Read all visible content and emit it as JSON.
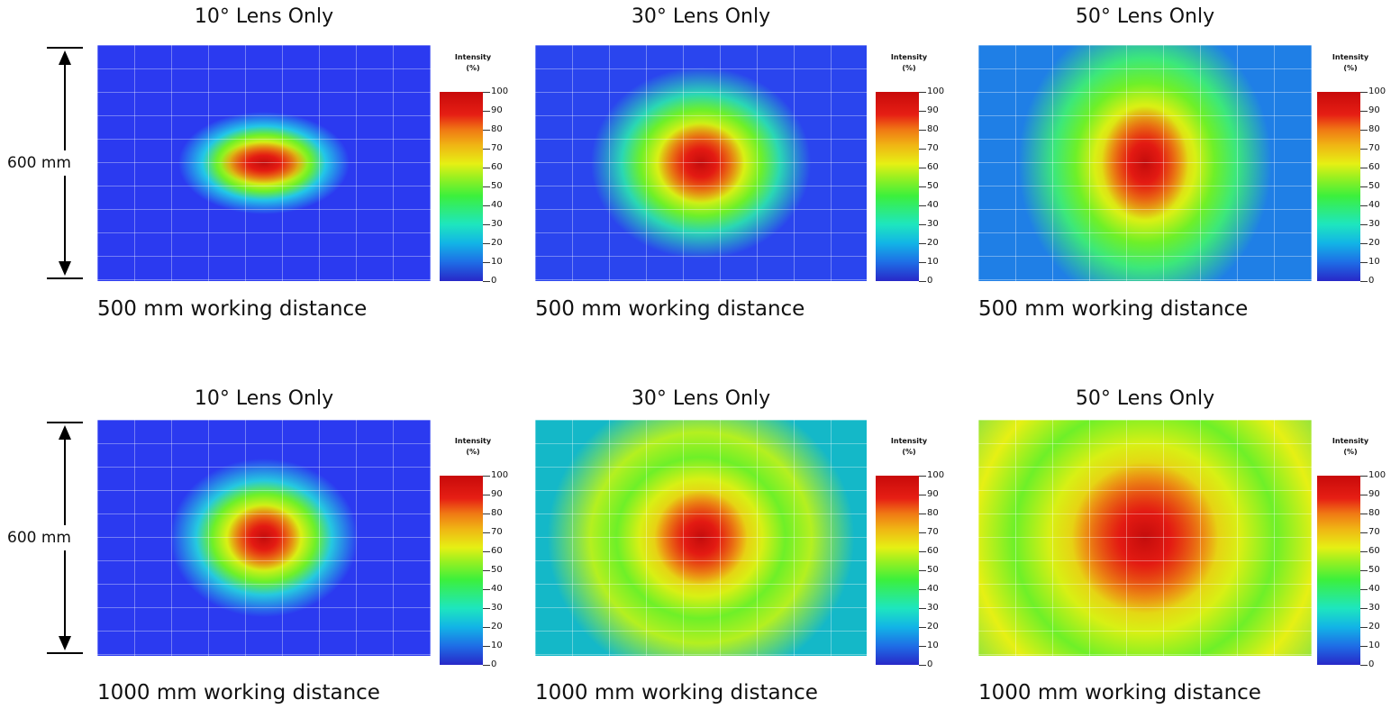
{
  "rows": [
    {
      "dimension_label": "600 mm",
      "panels": [
        {
          "title": "10° Lens Only",
          "caption": "500 mm working distance",
          "corner_text": "",
          "hotspot": {
            "rx": 0.13,
            "ry": 0.09,
            "bg": "#2b3af0",
            "ring": "#22c7e8",
            "edge": 0.52
          }
        },
        {
          "title": "30° Lens Only",
          "caption": "500 mm working distance",
          "corner_text": "",
          "hotspot": {
            "rx": 0.13,
            "ry": 0.17,
            "bg": "#2a45ee",
            "ring": "#2ad7b4",
            "edge": 0.78
          }
        },
        {
          "title": "50° Lens Only",
          "caption": "500 mm working distance",
          "corner_text": "",
          "hotspot": {
            "rx": 0.13,
            "ry": 0.24,
            "bg": "#1f7fe6",
            "ring": "#3ce87a",
            "edge": 0.95
          }
        }
      ]
    },
    {
      "dimension_label": "600 mm",
      "panels": [
        {
          "title": "10° Lens Only",
          "caption": "1000 mm working distance",
          "corner_text": "",
          "hotspot": {
            "rx": 0.11,
            "ry": 0.14,
            "bg": "#2b3af0",
            "ring": "#25c9e0",
            "edge": 0.72
          }
        },
        {
          "title": "30° Lens Only",
          "caption": "1000 mm working distance",
          "corner_text": "",
          "hotspot": {
            "rx": 0.14,
            "ry": 0.2,
            "bg": "#14b8c8",
            "ring": "#b4f020",
            "edge": 1.15
          }
        },
        {
          "title": "50° Lens Only",
          "caption": "1000 mm working distance",
          "corner_text": "",
          "hotspot": {
            "rx": 0.22,
            "ry": 0.32,
            "bg": "#4bd860",
            "ring": "#e6f014",
            "edge": 1.25
          }
        }
      ]
    }
  ],
  "colorbar": {
    "title_line1": "Intensity",
    "title_line2": "(%)",
    "ticks": [
      "100",
      "90",
      "80",
      "70",
      "60",
      "50",
      "40",
      "30",
      "20",
      "10",
      "0"
    ]
  },
  "chart_data": {
    "type": "heatmap",
    "value_label": "Intensity (%)",
    "value_range": [
      0,
      100
    ],
    "panels": [
      {
        "title": "10° Lens Only",
        "working_distance": "500 mm working distance",
        "peak_percent": 100
      },
      {
        "title": "30° Lens Only",
        "working_distance": "500 mm working distance",
        "peak_percent": 100
      },
      {
        "title": "50° Lens Only",
        "working_distance": "500 mm working distance",
        "peak_percent": 100
      },
      {
        "title": "10° Lens Only",
        "working_distance": "1000 mm working distance",
        "peak_percent": 100
      },
      {
        "title": "30° Lens Only",
        "working_distance": "1000 mm working distance",
        "peak_percent": 100
      },
      {
        "title": "50° Lens Only",
        "working_distance": "1000 mm working distance",
        "peak_percent": 100
      }
    ],
    "colormap": [
      "#2828c8",
      "#1e6ee6",
      "#12b4e6",
      "#1ee6be",
      "#3cf03c",
      "#9cf020",
      "#e6f014",
      "#f0b414",
      "#f07814",
      "#e61e14",
      "#c80a0a"
    ]
  }
}
